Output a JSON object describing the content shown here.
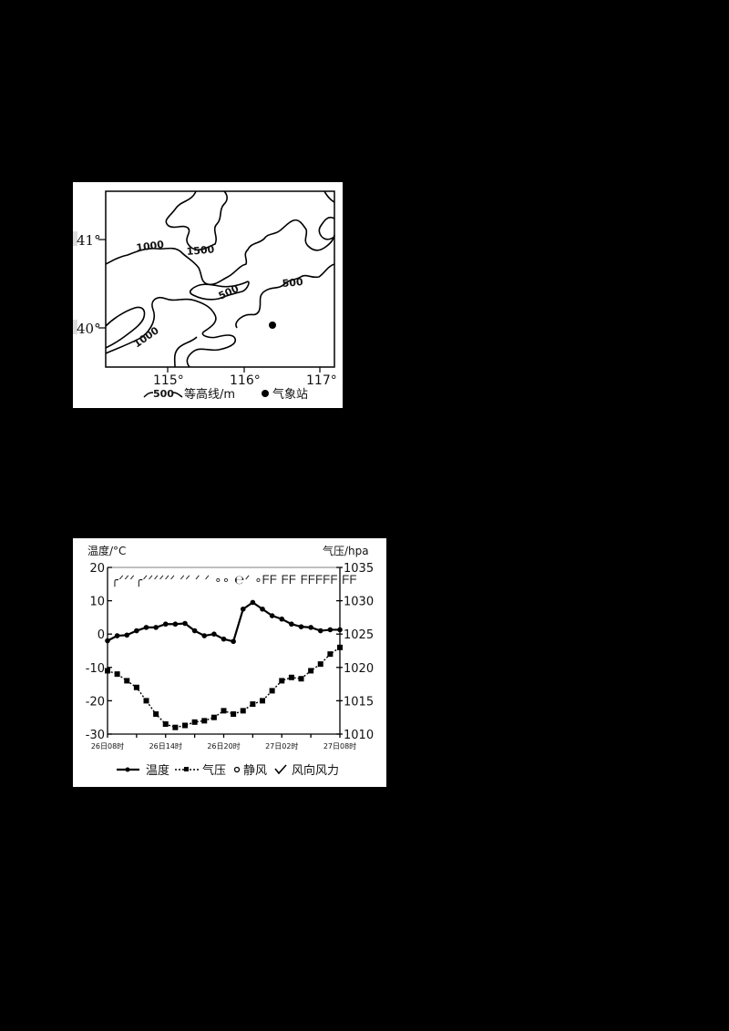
{
  "map": {
    "lat_labels": [
      "41°",
      "40°"
    ],
    "lon_labels": [
      "115°",
      "116°",
      "117°"
    ],
    "contour_labels": [
      "1000",
      "1500",
      "500",
      "500",
      "1000"
    ],
    "legend": {
      "contour_sample": "500",
      "contour_text": "等高线/m",
      "station_text": "气象站"
    }
  },
  "chart": {
    "left_axis_title": "温度/°C",
    "right_axis_title": "气压/hpa",
    "left_ticks": [
      "20",
      "10",
      "0",
      "-10",
      "-20",
      "-30"
    ],
    "right_ticks": [
      "1035",
      "1030",
      "1025",
      "1020",
      "1015",
      "1010"
    ],
    "x_ticks": [
      "26日08时",
      "26日14时",
      "26日20时",
      "27日02时",
      "27日08时"
    ],
    "legend": {
      "temperature": "温度",
      "pressure": "气压",
      "calm": "静风",
      "wind": "风向风力"
    }
  },
  "chart_data": {
    "type": "line",
    "title": "",
    "xlabel": "",
    "ylabel": "温度/°C",
    "ylabel_right": "气压/hpa",
    "ylim": [
      -30,
      20
    ],
    "ylim_right": [
      1010,
      1035
    ],
    "x": [
      "26日08时",
      "09时",
      "10时",
      "11时",
      "12时",
      "13时",
      "26日14时",
      "15时",
      "16时",
      "17时",
      "18时",
      "19时",
      "26日20时",
      "21时",
      "22时",
      "23时",
      "00时",
      "01时",
      "27日02时",
      "03时",
      "04时",
      "05时",
      "06时",
      "07时",
      "27日08时"
    ],
    "x_tick_labels": [
      "26日08时",
      "26日14时",
      "26日20时",
      "27日02时",
      "27日08时"
    ],
    "series": [
      {
        "name": "温度",
        "axis": "left",
        "style": "solid-dot",
        "values": [
          -2,
          -0.5,
          -0.3,
          1,
          2,
          2,
          3,
          3,
          3.2,
          1,
          -0.5,
          0,
          -1.5,
          -2.2,
          7.5,
          9.5,
          7.5,
          5.5,
          4.5,
          3,
          2.2,
          2,
          1,
          1.3,
          1.3
        ]
      },
      {
        "name": "气压",
        "axis": "right",
        "style": "dotted-square",
        "values": [
          1019.5,
          1019,
          1018,
          1017,
          1015,
          1013,
          1011.5,
          1011,
          1011.3,
          1011.8,
          1012,
          1012.5,
          1013.5,
          1013,
          1013.5,
          1014.5,
          1015,
          1016.5,
          1018,
          1018.5,
          1018.3,
          1019.5,
          1020.5,
          1022,
          1023
        ]
      }
    ],
    "wind_symbols": "top row of wind barbs; calm (静风) circles around 26日16时–20时 and 26日21时",
    "legend": [
      "温度",
      "气压",
      "静风",
      "风向风力"
    ],
    "legend_position": "bottom",
    "grid": false
  }
}
